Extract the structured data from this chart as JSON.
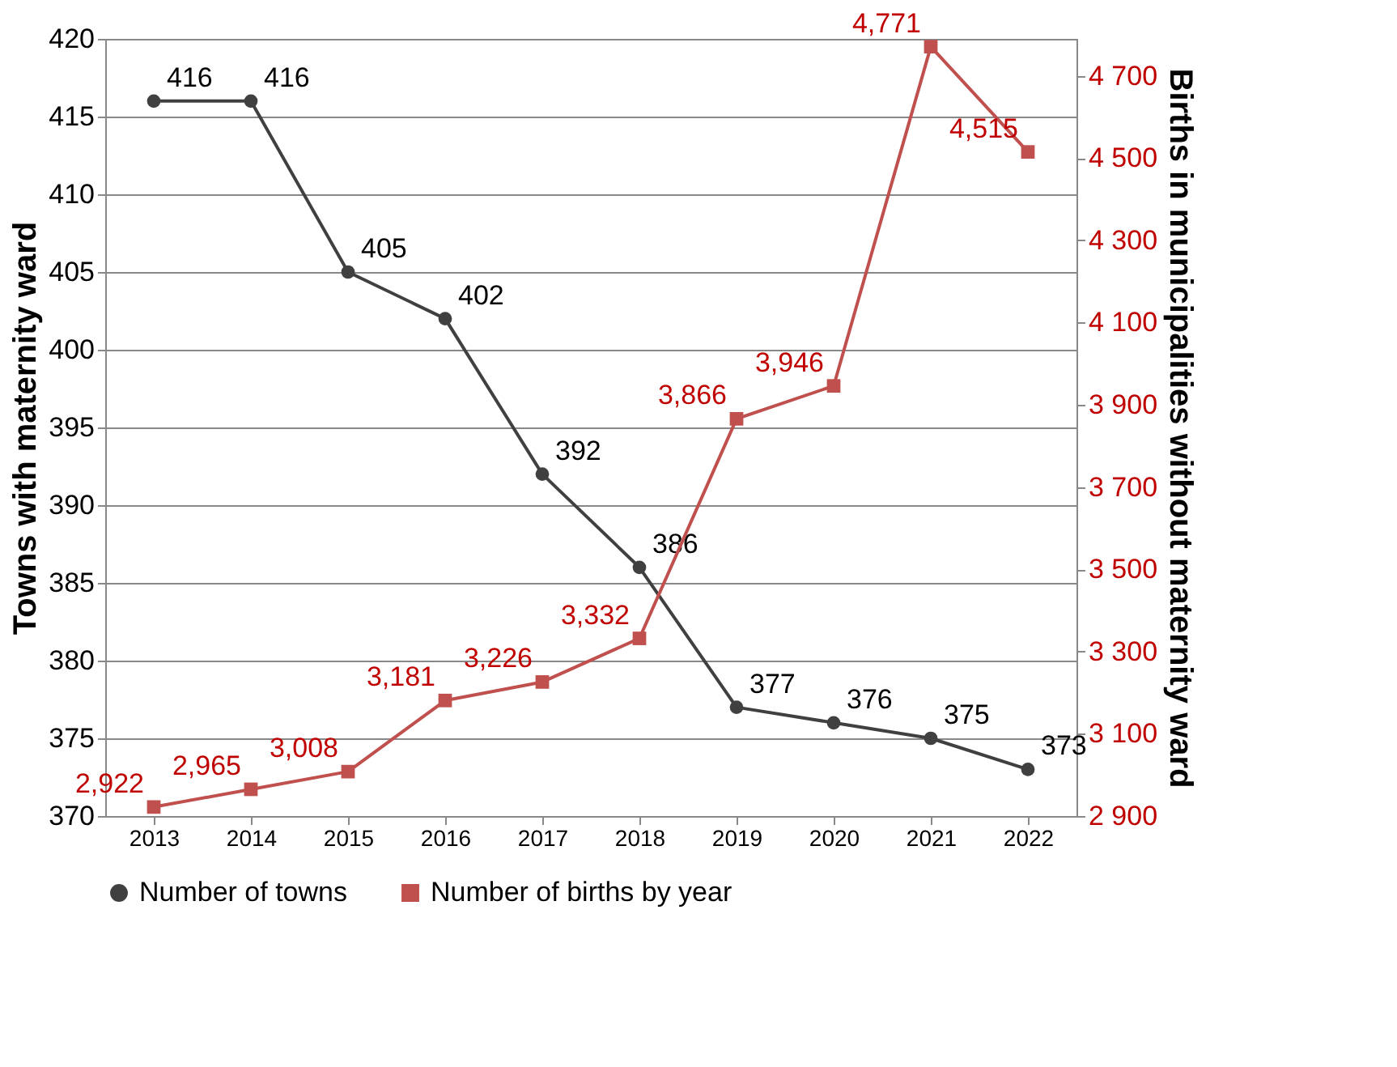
{
  "chart_data": {
    "type": "line",
    "categories": [
      "2013",
      "2014",
      "2015",
      "2016",
      "2017",
      "2018",
      "2019",
      "2020",
      "2021",
      "2022"
    ],
    "ylabel": "Towns with maternity ward",
    "y2label": "Births in municipalities without maternity ward",
    "ylim": [
      370,
      420
    ],
    "yticks": [
      370,
      375,
      380,
      385,
      390,
      395,
      400,
      405,
      410,
      415,
      420
    ],
    "y2lim": [
      2900,
      4790
    ],
    "y2ticks": [
      {
        "value": 2900,
        "label": "2 900"
      },
      {
        "value": 3100,
        "label": "3 100"
      },
      {
        "value": 3300,
        "label": "3 300"
      },
      {
        "value": 3500,
        "label": "3 500"
      },
      {
        "value": 3700,
        "label": "3 700"
      },
      {
        "value": 3900,
        "label": "3 900"
      },
      {
        "value": 4100,
        "label": "4 100"
      },
      {
        "value": 4300,
        "label": "4 300"
      },
      {
        "value": 4500,
        "label": "4 500"
      },
      {
        "value": 4700,
        "label": "4 700"
      }
    ],
    "grid": "y",
    "legend": "bottom",
    "series": [
      {
        "name": "Number of towns",
        "color": "#404040",
        "marker": "circle",
        "values": [
          416,
          416,
          405,
          402,
          392,
          386,
          377,
          376,
          375,
          373
        ],
        "value_labels": [
          "416",
          "416",
          "405",
          "402",
          "392",
          "386",
          "377",
          "376",
          "375",
          "373"
        ]
      },
      {
        "name": "Number of births by year",
        "color": "#c0504d",
        "marker": "square",
        "axis": "y2",
        "values": [
          2922,
          2965,
          3008,
          3181,
          3226,
          3332,
          3866,
          3946,
          4771,
          4515
        ],
        "value_labels": [
          "2,922",
          "2,965",
          "3,008",
          "3,181",
          "3,226",
          "3,332",
          "3,866",
          "3,946",
          "4,771",
          "4,515"
        ]
      }
    ]
  }
}
